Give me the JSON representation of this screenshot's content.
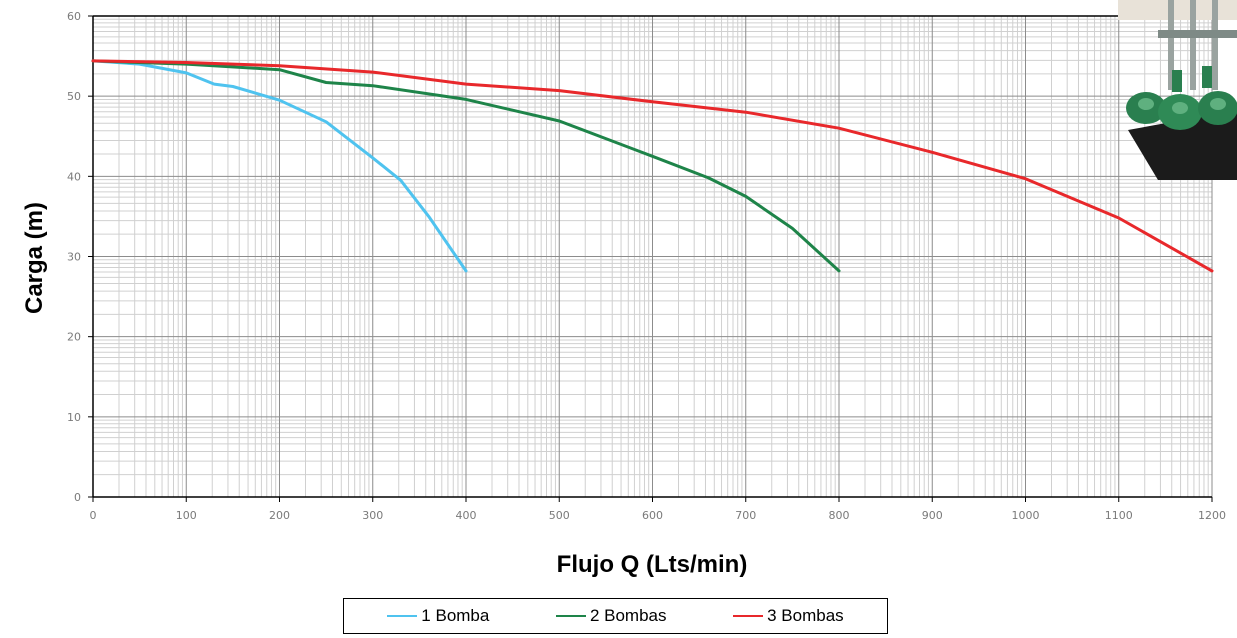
{
  "chart_data": {
    "type": "line",
    "title": "",
    "xlabel": "Flujo Q (Lts/min)",
    "ylabel": "Carga  (m)",
    "xlim": [
      0,
      1200
    ],
    "ylim": [
      0,
      60
    ],
    "x_major_ticks": [
      0,
      100,
      200,
      300,
      400,
      500,
      600,
      700,
      800,
      900,
      1000,
      1100,
      1200
    ],
    "x_tick_labels": [
      "0",
      "100",
      "200",
      "300",
      "400",
      "500",
      "600",
      "700",
      "800",
      "900",
      "1000",
      "1100",
      "1200"
    ],
    "y_major_ticks": [
      0,
      10,
      20,
      30,
      40,
      50,
      60
    ],
    "y_tick_labels": [
      "0",
      "10",
      "20",
      "30",
      "40",
      "50",
      "60"
    ],
    "grid": true,
    "legend_position": "bottom",
    "series": [
      {
        "name": "1 Bomba",
        "color": "#4fc3ef",
        "x": [
          0,
          50,
          100,
          130,
          150,
          200,
          250,
          300,
          330,
          360,
          400
        ],
        "y": [
          54.4,
          54.0,
          52.9,
          51.5,
          51.2,
          49.5,
          46.8,
          42.3,
          39.5,
          35.0,
          28.2
        ]
      },
      {
        "name": "2 Bombas",
        "color": "#1e8449",
        "x": [
          0,
          100,
          200,
          250,
          300,
          400,
          500,
          600,
          660,
          700,
          750,
          800
        ],
        "y": [
          54.4,
          54.0,
          53.3,
          51.7,
          51.3,
          49.6,
          46.9,
          42.5,
          39.8,
          37.5,
          33.5,
          28.2
        ]
      },
      {
        "name": "3 Bombas",
        "color": "#e8282b",
        "x": [
          0,
          100,
          200,
          300,
          400,
          500,
          600,
          700,
          800,
          900,
          1000,
          1100,
          1200
        ],
        "y": [
          54.4,
          54.2,
          53.8,
          53.0,
          51.5,
          50.7,
          49.3,
          48.0,
          46.0,
          43.0,
          39.7,
          34.8,
          28.2
        ]
      }
    ]
  },
  "legend": {
    "items": [
      {
        "label": "1 Bomba",
        "color": "#4fc3ef"
      },
      {
        "label": "2 Bombas",
        "color": "#1e8449"
      },
      {
        "label": "3 Bombas",
        "color": "#e8282b"
      }
    ]
  },
  "photo": {
    "icon": "pump-station-photo"
  }
}
